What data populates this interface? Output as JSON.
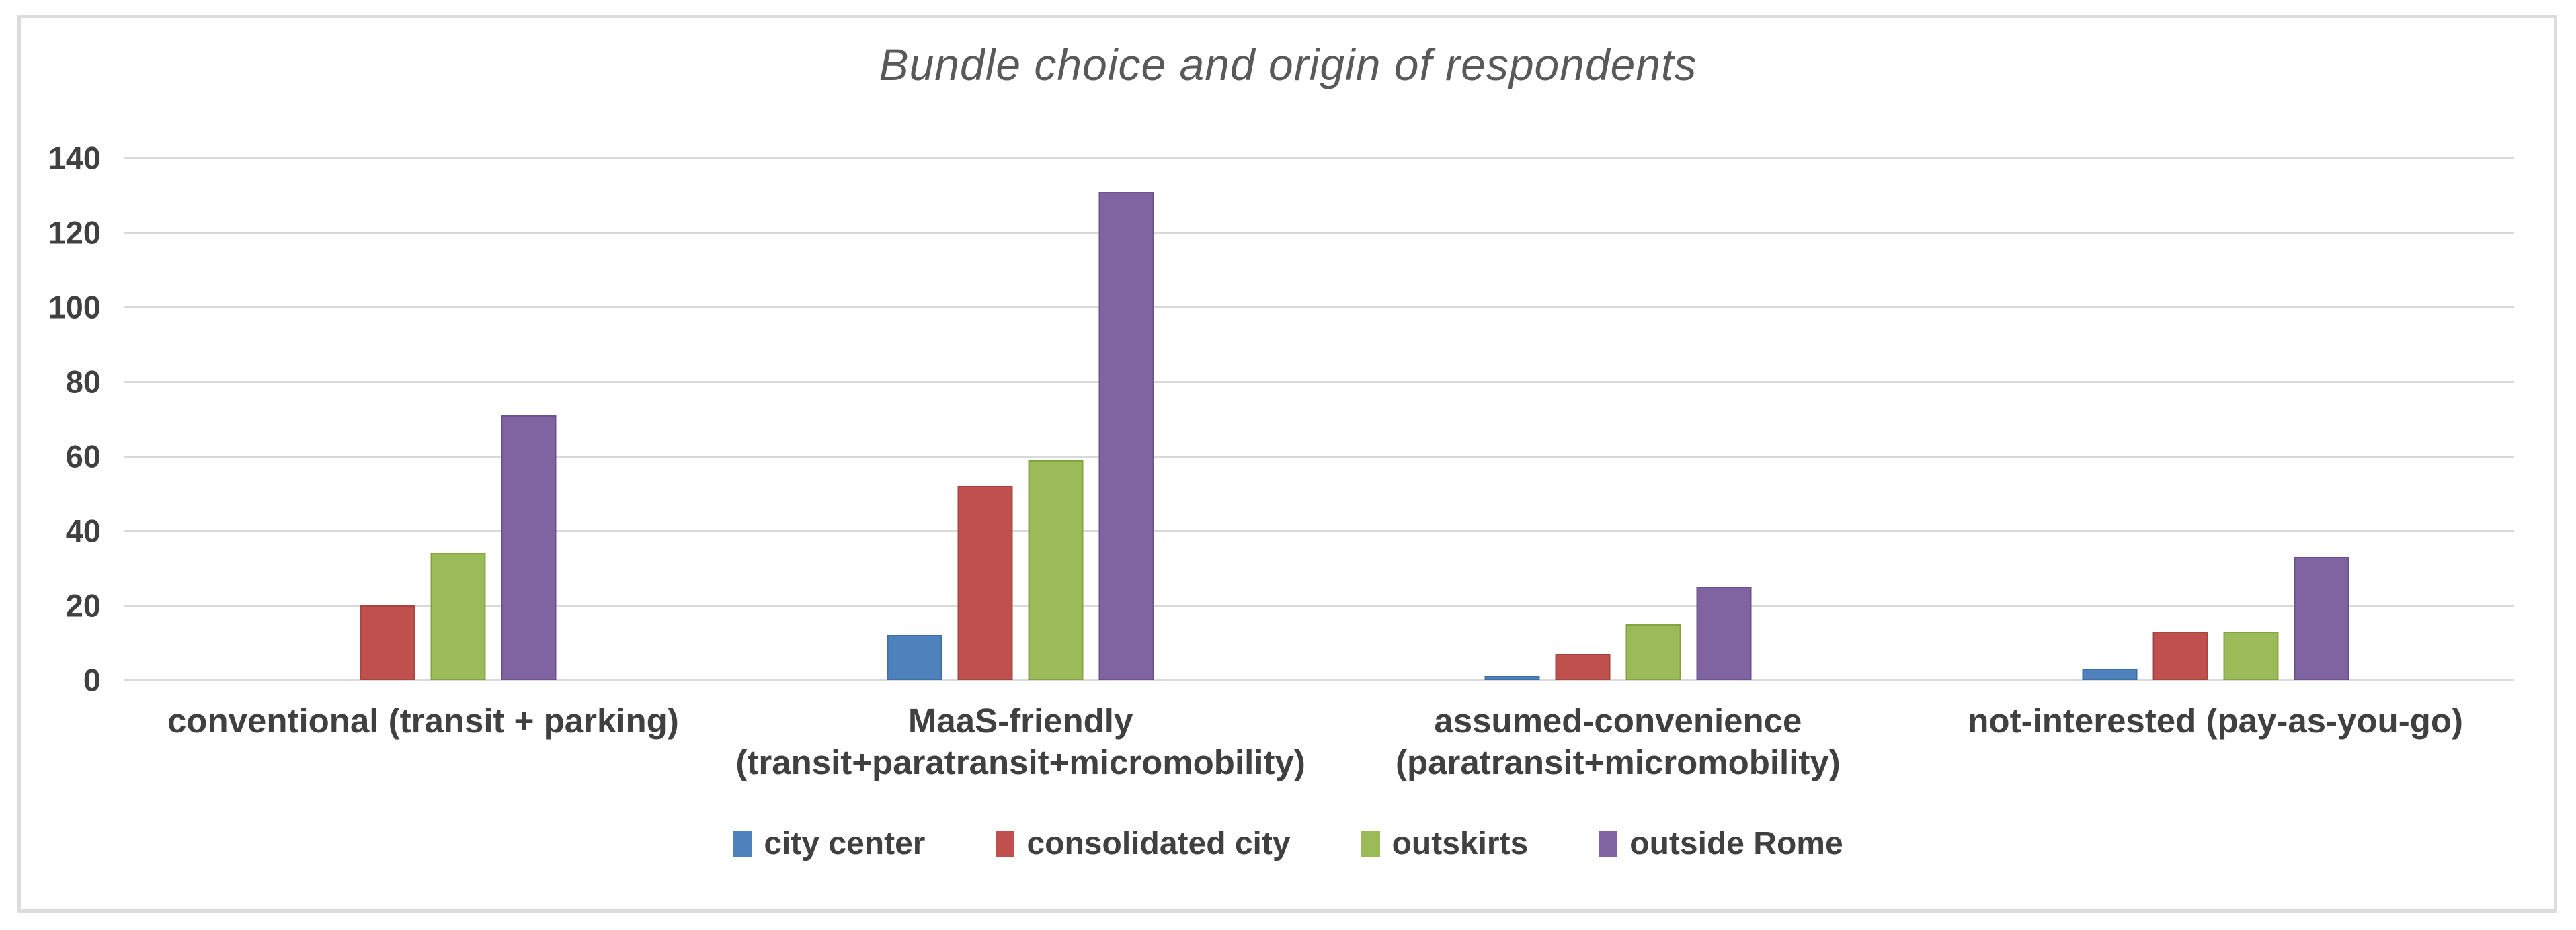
{
  "chart_data": {
    "type": "bar",
    "title": "Bundle choice and origin of respondents",
    "categories": [
      "conventional (transit + parking)",
      "MaaS-friendly\n(transit+paratransit+micromobility)",
      "assumed-convenience\n(paratransit+micromobility)",
      "not-interested (pay-as-you-go)"
    ],
    "series": [
      {
        "name": "city center",
        "color": "#4F81BD",
        "border_color": "#3D6EA5",
        "values": [
          0,
          12,
          1,
          3
        ]
      },
      {
        "name": "consolidated city",
        "color": "#C0504D",
        "border_color": "#A64542",
        "values": [
          20,
          52,
          7,
          13
        ]
      },
      {
        "name": "outskirts",
        "color": "#9BBB59",
        "border_color": "#84A33F",
        "values": [
          34,
          59,
          15,
          13
        ]
      },
      {
        "name": "outside Rome",
        "color": "#8064A2",
        "border_color": "#6A5389",
        "values": [
          71,
          131,
          25,
          33
        ]
      }
    ],
    "xlabel": "",
    "ylabel": "",
    "ylim": [
      0,
      140
    ],
    "yticks": [
      0,
      20,
      40,
      60,
      80,
      100,
      120,
      140
    ],
    "grid": true,
    "legend_position": "bottom",
    "gridline_color": "#D9D9D9",
    "axis_text_color": "#404040",
    "title_color": "#595959",
    "figure_border_color": "#DCDCDC",
    "background": "#FFFFFF"
  }
}
